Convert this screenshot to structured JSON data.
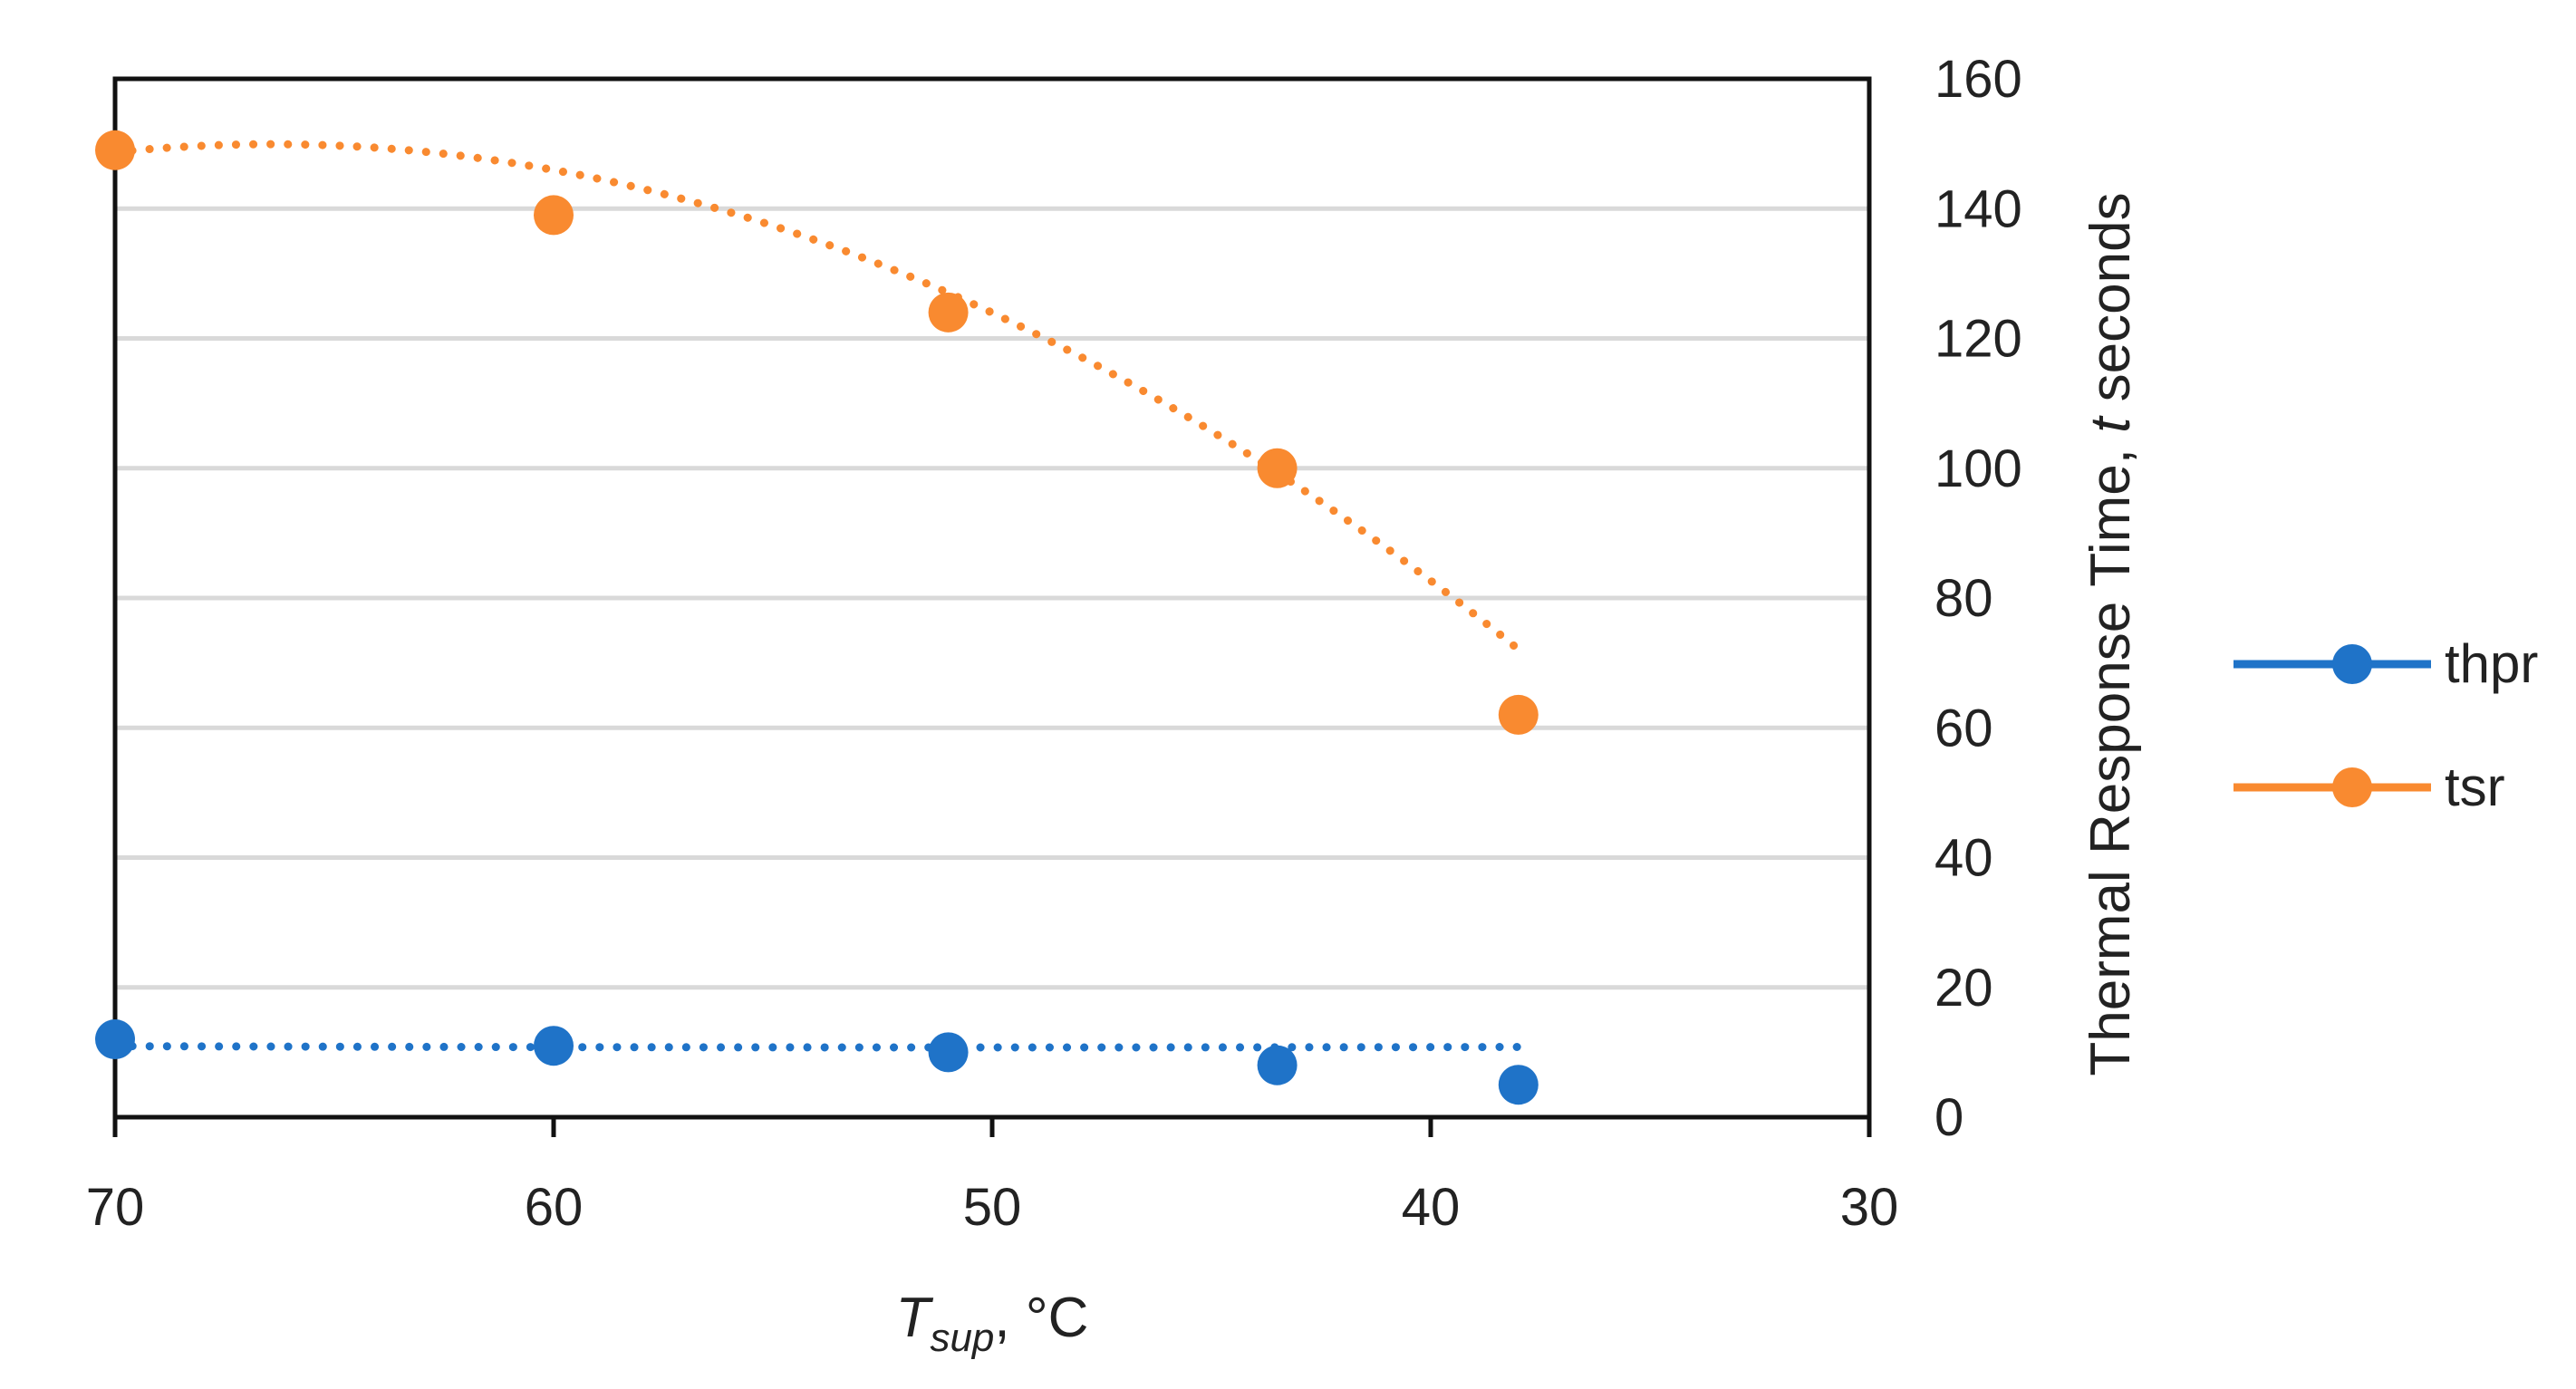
{
  "chart_data": {
    "type": "scatter",
    "title": "",
    "xlabel_main": "T",
    "xlabel_sub": "sup",
    "xlabel_unit": ", °C",
    "ylabel_main": "Thermal Response Time, ",
    "ylabel_var": "t",
    "ylabel_unit": " seconds",
    "xlim": [
      70,
      30
    ],
    "ylim": [
      0,
      160
    ],
    "xticks": [
      "70",
      "60",
      "50",
      "40",
      "30"
    ],
    "yticks": [
      "0",
      "20",
      "40",
      "60",
      "80",
      "100",
      "120",
      "140",
      "160"
    ],
    "grid": true,
    "legend_position": "right",
    "series": [
      {
        "name": "thpr",
        "color": "#1f73c8",
        "x": [
          70,
          60,
          51,
          43.5,
          38
        ],
        "values": [
          12,
          11,
          10,
          8,
          5
        ],
        "trend_coef": [
          0.0005,
          -0.05,
          12.0
        ],
        "trend": "dotted polynomial"
      },
      {
        "name": "tsr",
        "color": "#f98a30",
        "x": [
          70,
          60,
          51,
          43.5,
          38
        ],
        "values": [
          149,
          139,
          124,
          100,
          62
        ],
        "trend_coef": [
          -0.0964,
          12.805,
          -275.3
        ],
        "trend": "dotted polynomial"
      }
    ]
  }
}
